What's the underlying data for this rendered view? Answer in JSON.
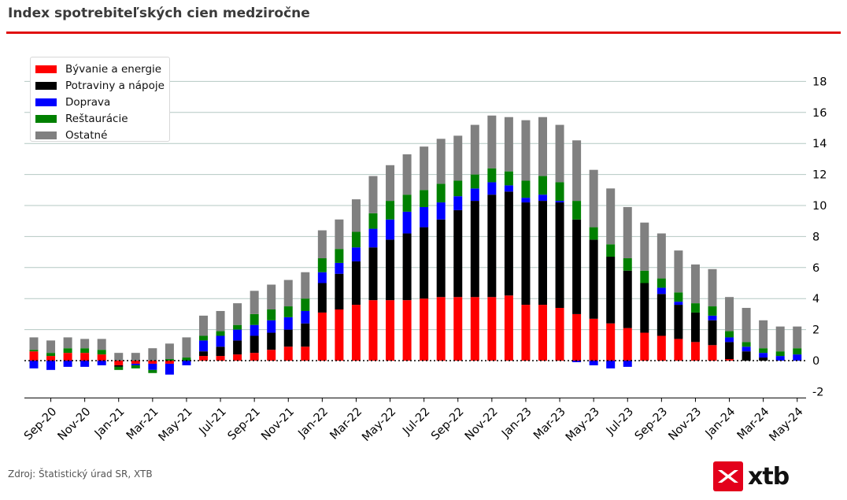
{
  "title": "Index spotrebiteľských cien medziročne",
  "source": "Zdroj: Štatistický úrad SR, XTB",
  "logo_text": "xtb",
  "colors": {
    "accent": "#e01010",
    "grid": "#b4c8c3",
    "logo": "#e3001b"
  },
  "chart_data": {
    "type": "bar",
    "stacked": true,
    "title": "Index spotrebiteľských cien medziročne",
    "legend_position": "top-left",
    "grid": true,
    "y_axis_position": "right",
    "ylim": [
      -2,
      19
    ],
    "yticks": [
      -2,
      0,
      2,
      4,
      6,
      8,
      10,
      12,
      14,
      16,
      18
    ],
    "x_tick_labels": [
      "Sep-20",
      "Nov-20",
      "Jan-21",
      "Mar-21",
      "May-21",
      "Jul-21",
      "Sep-21",
      "Nov-21",
      "Jan-22",
      "Mar-22",
      "May-22",
      "Jul-22",
      "Sep-22",
      "Nov-22",
      "Jan-23",
      "Mar-23",
      "May-23",
      "Jul-23",
      "Sep-23",
      "Nov-23",
      "Jan-24",
      "Mar-24",
      "May-24"
    ],
    "categories": [
      "Aug-20",
      "Sep-20",
      "Oct-20",
      "Nov-20",
      "Dec-20",
      "Jan-21",
      "Feb-21",
      "Mar-21",
      "Apr-21",
      "May-21",
      "Jun-21",
      "Jul-21",
      "Aug-21",
      "Sep-21",
      "Oct-21",
      "Nov-21",
      "Dec-21",
      "Jan-22",
      "Feb-22",
      "Mar-22",
      "Apr-22",
      "May-22",
      "Jun-22",
      "Jul-22",
      "Aug-22",
      "Sep-22",
      "Oct-22",
      "Nov-22",
      "Dec-22",
      "Jan-23",
      "Feb-23",
      "Mar-23",
      "Apr-23",
      "May-23",
      "Jun-23",
      "Jul-23",
      "Aug-23",
      "Sep-23",
      "Oct-23",
      "Nov-23",
      "Dec-23",
      "Jan-24",
      "Feb-24",
      "Mar-24",
      "Apr-24",
      "May-24"
    ],
    "series": [
      {
        "name": "Bývanie a energie",
        "color": "#ff0000",
        "values": [
          0.6,
          0.3,
          0.5,
          0.5,
          0.4,
          -0.3,
          -0.2,
          -0.2,
          -0.2,
          0,
          0.3,
          0.3,
          0.4,
          0.5,
          0.7,
          0.9,
          0.9,
          3.1,
          3.3,
          3.6,
          3.9,
          3.9,
          3.9,
          4.0,
          4.1,
          4.1,
          4.1,
          4.1,
          4.2,
          3.6,
          3.6,
          3.4,
          3.0,
          2.7,
          2.4,
          2.1,
          1.8,
          1.6,
          1.4,
          1.2,
          1.0,
          0.1,
          0,
          0,
          0,
          0
        ]
      },
      {
        "name": "Potraviny a nápoje",
        "color": "#000000",
        "values": [
          0,
          0,
          0,
          0,
          0,
          -0.1,
          0,
          0,
          0,
          0,
          0.3,
          0.6,
          0.9,
          1.1,
          1.1,
          1.1,
          1.5,
          1.9,
          2.3,
          2.8,
          3.4,
          3.9,
          4.3,
          4.6,
          5.0,
          5.6,
          6.2,
          6.6,
          6.7,
          6.6,
          6.7,
          6.8,
          6.1,
          5.1,
          4.3,
          3.7,
          3.2,
          2.7,
          2.2,
          1.9,
          1.6,
          1.1,
          0.6,
          0.2,
          0,
          0
        ]
      },
      {
        "name": "Doprava",
        "color": "#0000ff",
        "values": [
          -0.5,
          -0.6,
          -0.4,
          -0.4,
          -0.3,
          0,
          -0.1,
          -0.4,
          -0.7,
          -0.3,
          0.7,
          0.7,
          0.7,
          0.7,
          0.8,
          0.8,
          0.8,
          0.7,
          0.7,
          0.9,
          1.2,
          1.3,
          1.4,
          1.3,
          1.1,
          0.9,
          0.8,
          0.8,
          0.4,
          0.3,
          0.4,
          0.1,
          -0.1,
          -0.3,
          -0.5,
          -0.4,
          0,
          0.4,
          0.2,
          0,
          0.3,
          0.3,
          0.3,
          0.3,
          0.3,
          0.4
        ]
      },
      {
        "name": "Reštaurácie",
        "color": "#008000",
        "values": [
          0.1,
          0.2,
          0.3,
          0.3,
          0.3,
          -0.2,
          -0.2,
          -0.2,
          0.1,
          0.2,
          0.3,
          0.3,
          0.3,
          0.7,
          0.7,
          0.7,
          0.8,
          0.9,
          0.9,
          1.0,
          1.0,
          1.2,
          1.1,
          1.1,
          1.2,
          1.0,
          0.9,
          0.9,
          0.9,
          1.1,
          1.2,
          1.2,
          1.2,
          0.8,
          0.8,
          0.8,
          0.8,
          0.6,
          0.6,
          0.6,
          0.6,
          0.4,
          0.3,
          0.3,
          0.3,
          0.4
        ]
      },
      {
        "name": "Ostatné",
        "color": "#808080",
        "values": [
          0.8,
          0.8,
          0.7,
          0.6,
          0.7,
          0.5,
          0.5,
          0.8,
          1.0,
          1.3,
          1.3,
          1.3,
          1.4,
          1.5,
          1.6,
          1.7,
          1.7,
          1.8,
          1.9,
          2.1,
          2.4,
          2.3,
          2.6,
          2.8,
          2.9,
          2.9,
          3.2,
          3.4,
          3.5,
          3.9,
          3.8,
          3.7,
          3.9,
          3.7,
          3.6,
          3.3,
          3.1,
          2.9,
          2.7,
          2.5,
          2.4,
          2.2,
          2.2,
          1.8,
          1.6,
          1.4
        ]
      }
    ]
  }
}
